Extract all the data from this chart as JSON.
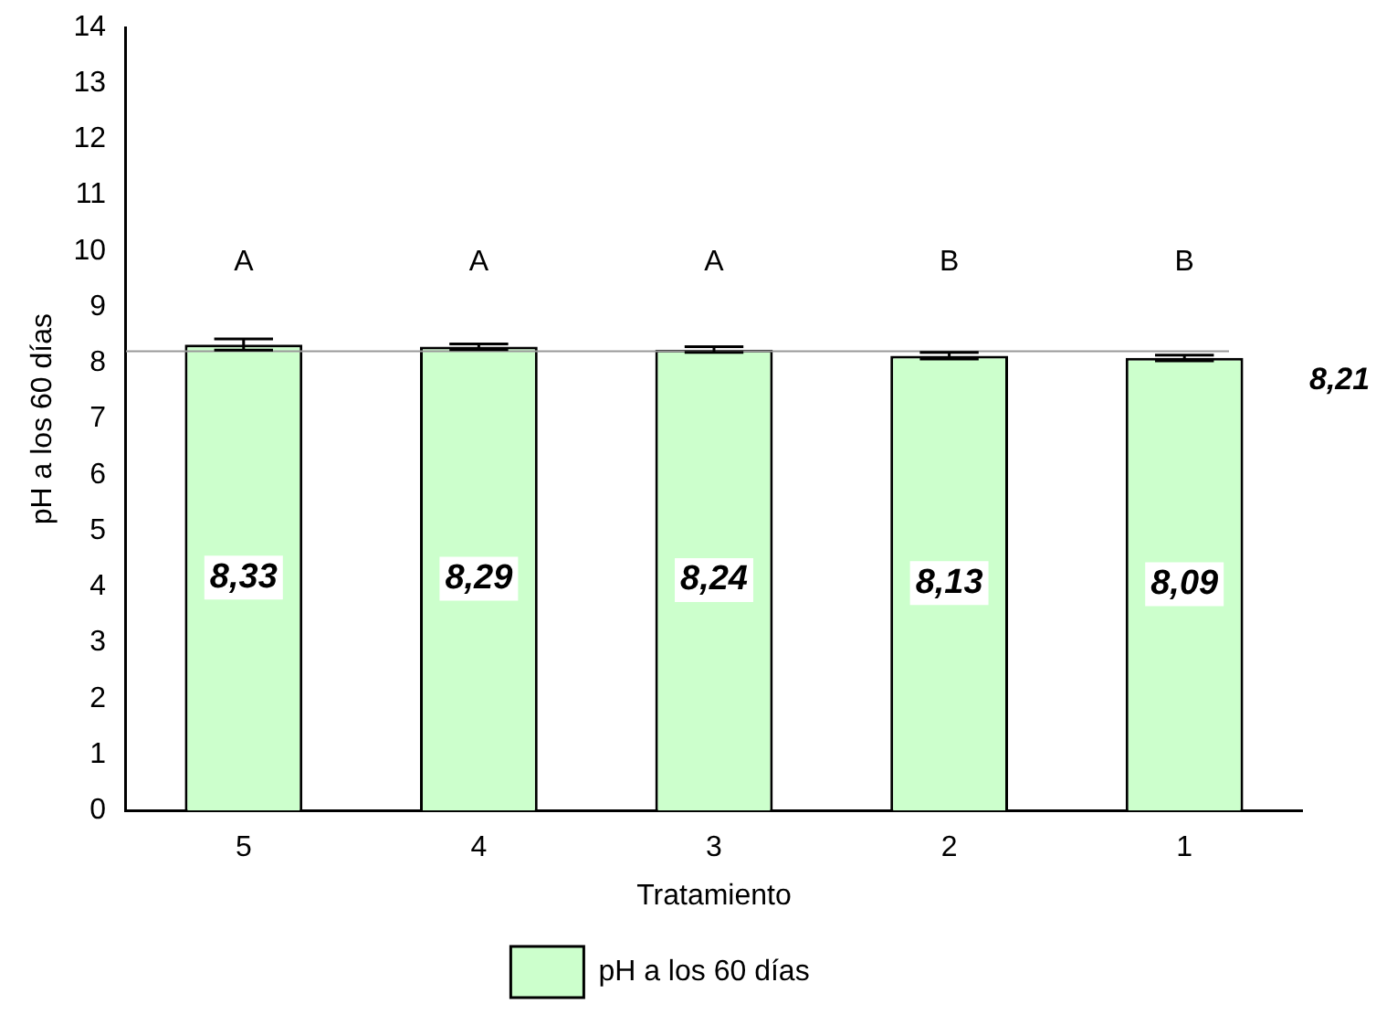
{
  "chart_data": {
    "type": "bar",
    "xlabel": "Tratamiento",
    "ylabel": "pH a los 60 días",
    "categories": [
      "5",
      "4",
      "3",
      "2",
      "1"
    ],
    "series": [
      {
        "name": "pH a los 60 días",
        "color": "#ccffcc",
        "values": [
          8.33,
          8.29,
          8.24,
          8.13,
          8.09
        ],
        "errors": [
          0.1,
          0.05,
          0.05,
          0.06,
          0.05
        ],
        "value_labels": [
          "8,33",
          "8,29",
          "8,24",
          "8,13",
          "8,09"
        ]
      }
    ],
    "ylim": [
      0,
      14
    ],
    "yticks": [
      0,
      1,
      2,
      3,
      4,
      5,
      6,
      7,
      8,
      9,
      10,
      11,
      12,
      13,
      14
    ],
    "grid": false,
    "legend": "bottom",
    "ref_lines": [
      {
        "axis": "y",
        "value": 8.21,
        "label": "8,21",
        "color": "#999999"
      }
    ],
    "annotations": [
      "A",
      "A",
      "A",
      "B",
      "B"
    ]
  }
}
